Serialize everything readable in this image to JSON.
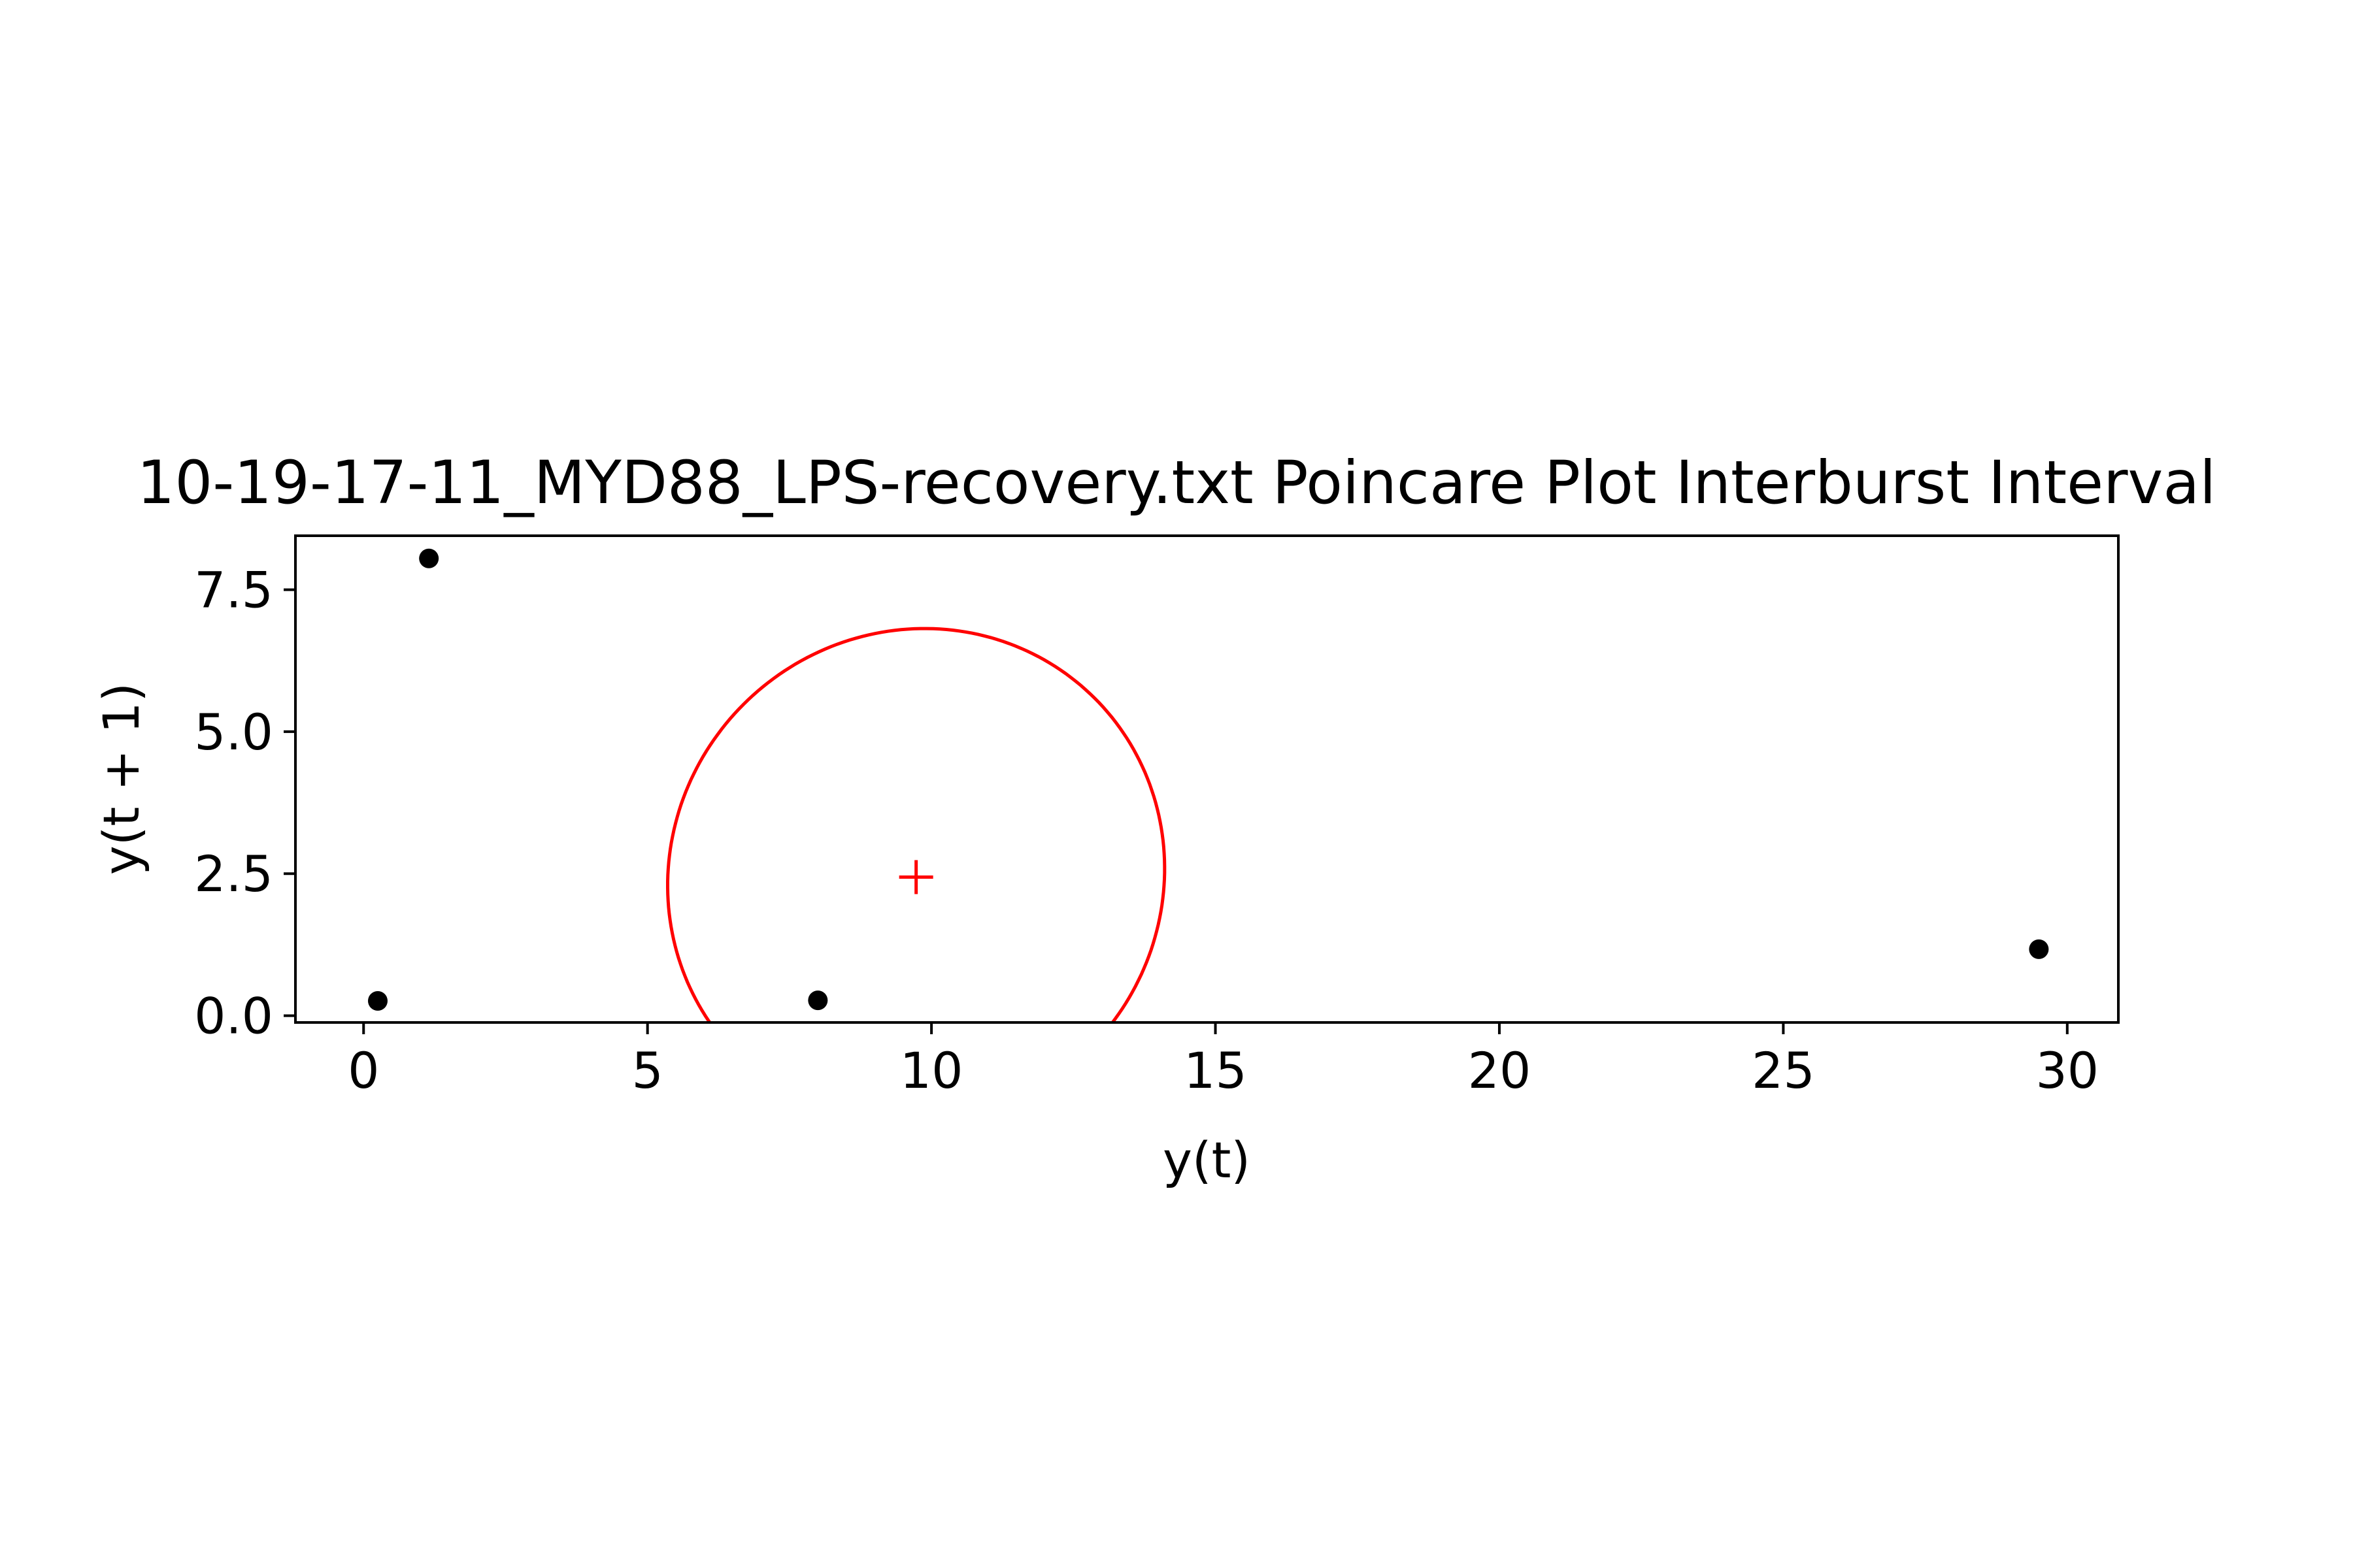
{
  "chart_data": {
    "type": "scatter",
    "title": "10-19-17-11_MYD88_LPS-recovery.txt Poincare Plot Interburst Interval",
    "xlabel": "y(t)",
    "ylabel": "y(t + 1)",
    "xlim": [
      -1.2,
      30.9
    ],
    "ylim": [
      -0.12,
      8.45
    ],
    "x_ticks": [
      0,
      5,
      10,
      15,
      20,
      25,
      30
    ],
    "x_tick_labels": [
      "0",
      "5",
      "10",
      "15",
      "20",
      "25",
      "30"
    ],
    "y_ticks": [
      0.0,
      2.5,
      5.0,
      7.5
    ],
    "y_tick_labels": [
      "0.0",
      "2.5",
      "5.0",
      "7.5"
    ],
    "grid": false,
    "legend": "none",
    "points": [
      {
        "x": 0.25,
        "y": 0.26
      },
      {
        "x": 1.15,
        "y": 8.05
      },
      {
        "x": 8.0,
        "y": 0.27
      },
      {
        "x": 29.5,
        "y": 1.17
      }
    ],
    "point_color": "#000000",
    "centroid": {
      "x": 9.73,
      "y": 2.44
    },
    "centroid_color": "#ff0000",
    "ellipse": {
      "center_x": 9.73,
      "center_y": 2.44,
      "semi_axis_a": 4.3,
      "semi_axis_b": 4.45,
      "angle_deg": -45,
      "color": "#ff0000"
    }
  }
}
